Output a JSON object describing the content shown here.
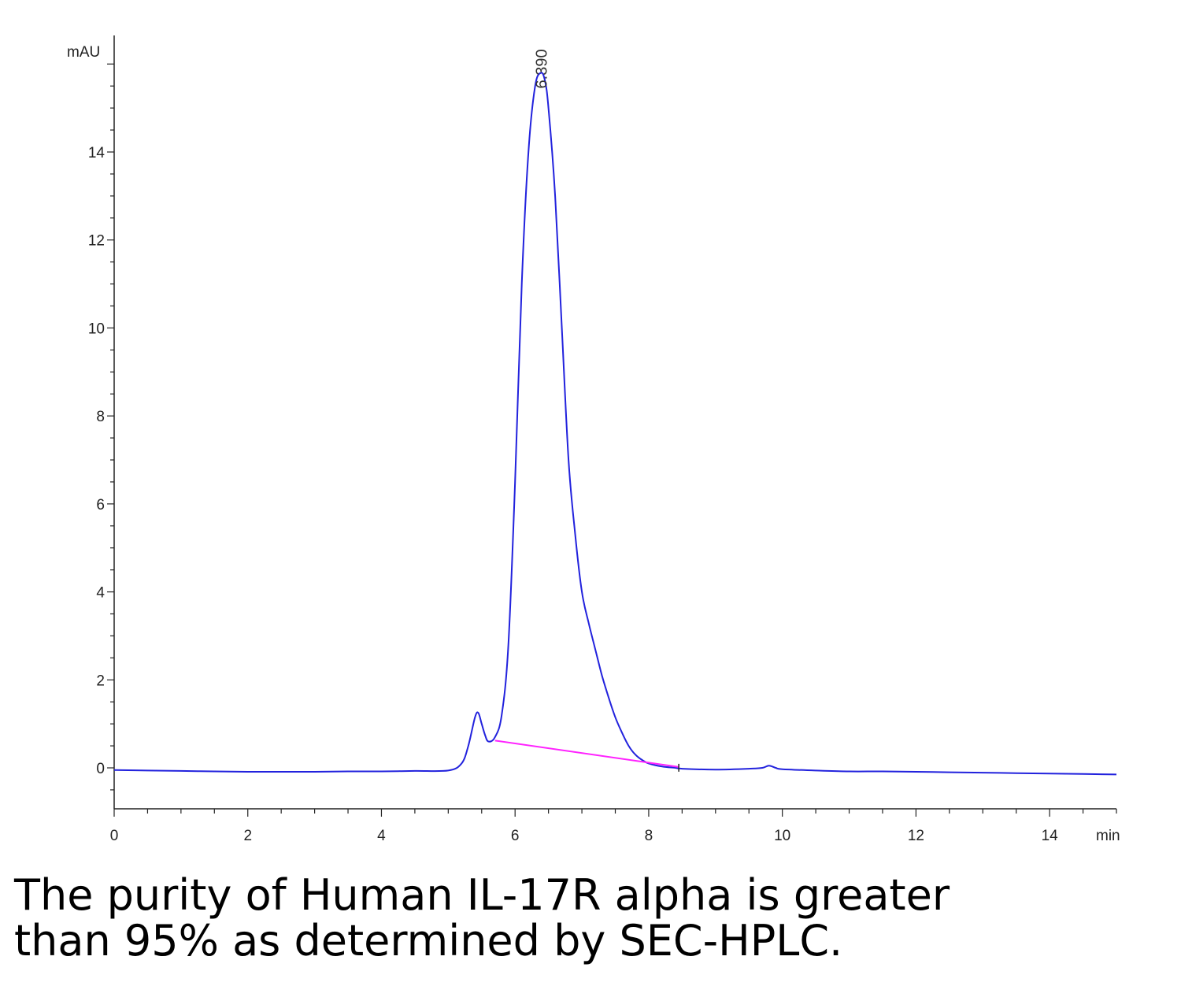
{
  "chart_data": {
    "type": "line",
    "title": "",
    "xlabel": "min",
    "ylabel": "mAU",
    "xlim": [
      0,
      15
    ],
    "ylim": [
      -1,
      16.3
    ],
    "x_ticks": [
      0,
      2,
      4,
      6,
      8,
      10,
      12,
      14
    ],
    "y_ticks": [
      0,
      2,
      4,
      6,
      8,
      10,
      12,
      14
    ],
    "grid": false,
    "series": [
      {
        "color": "#2222dd",
        "x": [
          0,
          0.5,
          1,
          1.5,
          2,
          2.5,
          3,
          3.5,
          4,
          4.5,
          5,
          5.2,
          5.3,
          5.4,
          5.45,
          5.5,
          5.55,
          5.6,
          5.7,
          5.8,
          5.9,
          6.0,
          6.1,
          6.2,
          6.3,
          6.39,
          6.45,
          6.5,
          6.6,
          6.7,
          6.8,
          6.9,
          7.0,
          7.1,
          7.2,
          7.3,
          7.4,
          7.5,
          7.6,
          7.7,
          7.8,
          7.9,
          8.0,
          8.2,
          8.4,
          8.5,
          9.0,
          9.5,
          9.7,
          9.8,
          9.9,
          10.0,
          10.5,
          11,
          11.5,
          12,
          12.5,
          13,
          13.5,
          14,
          14.5,
          15
        ],
        "y": [
          -0.05,
          -0.06,
          -0.07,
          -0.08,
          -0.09,
          -0.09,
          -0.09,
          -0.08,
          -0.08,
          -0.07,
          -0.06,
          0.1,
          0.5,
          1.15,
          1.25,
          1.0,
          0.75,
          0.6,
          0.7,
          1.2,
          2.8,
          6.5,
          11.0,
          14.0,
          15.5,
          15.8,
          15.6,
          15.0,
          13.0,
          10.0,
          7.0,
          5.3,
          4.0,
          3.3,
          2.7,
          2.1,
          1.6,
          1.15,
          0.8,
          0.5,
          0.3,
          0.18,
          0.1,
          0.03,
          0.0,
          -0.02,
          -0.04,
          -0.02,
          0.0,
          0.05,
          0.0,
          -0.03,
          -0.06,
          -0.08,
          -0.08,
          -0.09,
          -0.1,
          -0.11,
          -0.12,
          -0.13,
          -0.14,
          -0.15
        ]
      }
    ],
    "baseline": {
      "color": "#ff22ff",
      "x": [
        5.7,
        8.45
      ],
      "y": [
        0.62,
        0.02
      ]
    },
    "peak_labels": [
      {
        "x": 6.39,
        "y": 15.8,
        "text": "6.390"
      }
    ]
  },
  "caption": {
    "line1": "The purity of Human IL-17R alpha is greater",
    "line2": "than 95% as determined by SEC-HPLC."
  }
}
